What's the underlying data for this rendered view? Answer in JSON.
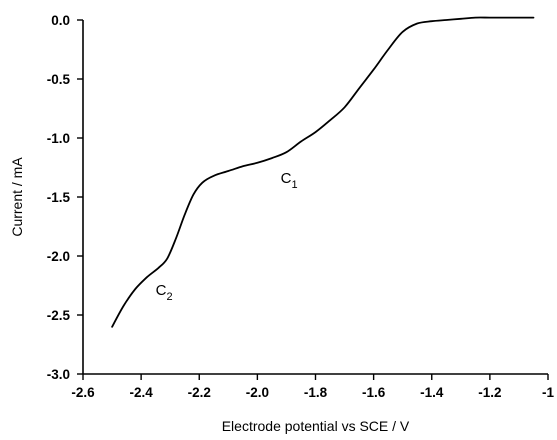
{
  "chart_data": {
    "type": "line",
    "title": "",
    "xlabel": "Electrode potential vs SCE / V",
    "ylabel": "Current / mA",
    "xlim": [
      -2.6,
      -1.0
    ],
    "ylim": [
      -3.0,
      0.0
    ],
    "grid": false,
    "x_ticks": [
      -2.6,
      -2.4,
      -2.2,
      -2.0,
      -1.8,
      -1.6,
      -1.4,
      -1.2,
      -1.0
    ],
    "x_tick_labels": [
      "-2.6",
      "-2.4",
      "-2.2",
      "-2.0",
      "-1.8",
      "-1.6",
      "-1.4",
      "-1.2",
      "-1"
    ],
    "y_ticks": [
      0.0,
      -0.5,
      -1.0,
      -1.5,
      -2.0,
      -2.5,
      -3.0
    ],
    "y_tick_labels": [
      "0.0",
      "-0.5",
      "-1.0",
      "-1.5",
      "-2.0",
      "-2.5",
      "-3.0"
    ],
    "series": [
      {
        "x": [
          -2.5,
          -2.46,
          -2.42,
          -2.38,
          -2.34,
          -2.31,
          -2.28,
          -2.25,
          -2.22,
          -2.19,
          -2.15,
          -2.1,
          -2.05,
          -2.0,
          -1.95,
          -1.9,
          -1.85,
          -1.8,
          -1.75,
          -1.7,
          -1.65,
          -1.6,
          -1.55,
          -1.5,
          -1.45,
          -1.4,
          -1.35,
          -1.3,
          -1.25,
          -1.2,
          -1.15,
          -1.1,
          -1.05
        ],
        "y": [
          -2.6,
          -2.42,
          -2.28,
          -2.18,
          -2.1,
          -2.02,
          -1.85,
          -1.65,
          -1.48,
          -1.38,
          -1.32,
          -1.28,
          -1.24,
          -1.21,
          -1.17,
          -1.12,
          -1.03,
          -0.95,
          -0.85,
          -0.74,
          -0.58,
          -0.42,
          -0.25,
          -0.1,
          -0.03,
          -0.01,
          0.0,
          0.01,
          0.02,
          0.02,
          0.02,
          0.02,
          0.02
        ]
      }
    ],
    "annotations": [
      {
        "text": "C",
        "sub": "1",
        "x": -1.92,
        "y": -1.38
      },
      {
        "text": "C",
        "sub": "2",
        "x": -2.35,
        "y": -2.33
      }
    ]
  }
}
